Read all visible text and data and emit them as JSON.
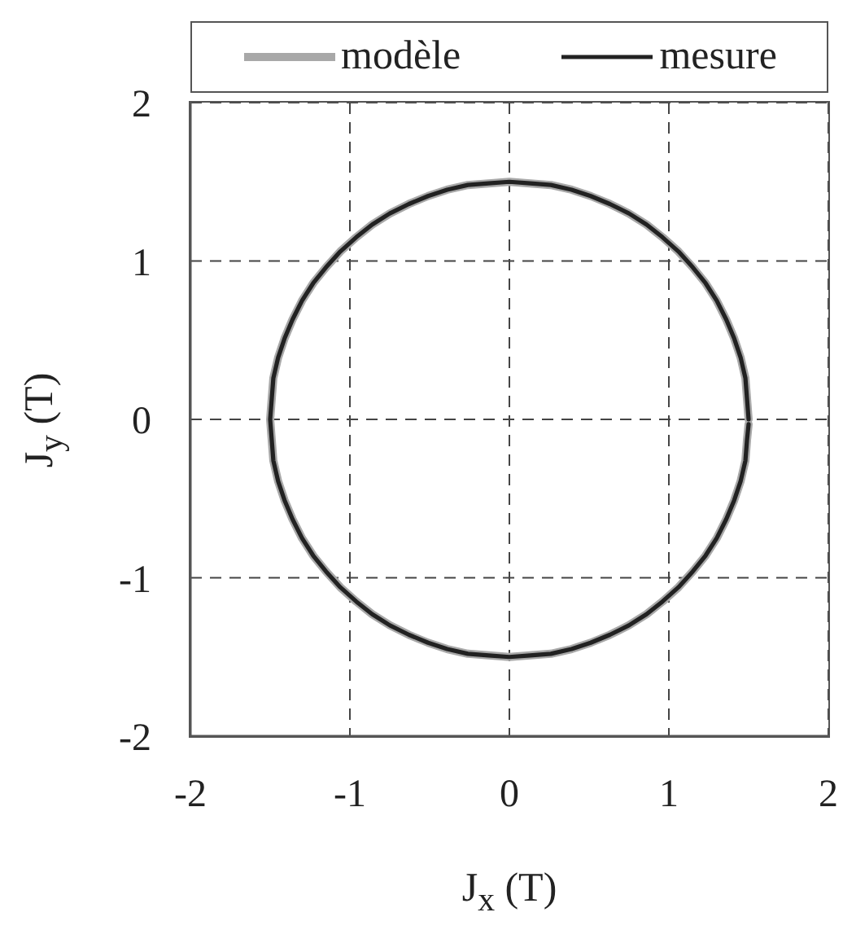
{
  "chart_data": {
    "type": "line",
    "xlabel": "J$_{x}$ (T)",
    "ylabel": "J$_{y}$ (T)",
    "xlim": [
      -2,
      2
    ],
    "ylim": [
      -2,
      2
    ],
    "xticks": [
      -2,
      -1,
      0,
      1,
      2
    ],
    "yticks": [
      -2,
      -1,
      0,
      1,
      2
    ],
    "grid": true,
    "legend": "top",
    "series": [
      {
        "name": "modèle",
        "color": "#a8a8a8",
        "x": [
          1.5,
          1.49,
          1.48,
          1.45,
          1.41,
          1.36,
          1.3,
          1.23,
          1.15,
          1.06,
          0.96,
          0.86,
          0.75,
          0.63,
          0.51,
          0.39,
          0.26,
          0.13,
          0,
          -0.13,
          -0.26,
          -0.39,
          -0.51,
          -0.63,
          -0.75,
          -0.86,
          -0.96,
          -1.06,
          -1.15,
          -1.23,
          -1.3,
          -1.36,
          -1.41,
          -1.45,
          -1.48,
          -1.49,
          -1.5,
          -1.49,
          -1.48,
          -1.45,
          -1.41,
          -1.36,
          -1.3,
          -1.23,
          -1.15,
          -1.06,
          -0.96,
          -0.86,
          -0.75,
          -0.63,
          -0.51,
          -0.39,
          -0.26,
          -0.13,
          0,
          0.13,
          0.26,
          0.39,
          0.51,
          0.63,
          0.75,
          0.86,
          0.96,
          1.06,
          1.15,
          1.23,
          1.3,
          1.36,
          1.41,
          1.45,
          1.48,
          1.49,
          1.5
        ],
        "values": [
          0,
          0.13,
          0.26,
          0.39,
          0.51,
          0.63,
          0.75,
          0.86,
          0.96,
          1.06,
          1.15,
          1.23,
          1.3,
          1.36,
          1.41,
          1.45,
          1.48,
          1.49,
          1.5,
          1.49,
          1.48,
          1.45,
          1.41,
          1.36,
          1.3,
          1.23,
          1.15,
          1.06,
          0.96,
          0.86,
          0.75,
          0.63,
          0.51,
          0.39,
          0.26,
          0.13,
          0,
          -0.13,
          -0.26,
          -0.39,
          -0.51,
          -0.63,
          -0.75,
          -0.86,
          -0.96,
          -1.06,
          -1.15,
          -1.23,
          -1.3,
          -1.36,
          -1.41,
          -1.45,
          -1.48,
          -1.49,
          -1.5,
          -1.49,
          -1.48,
          -1.45,
          -1.41,
          -1.36,
          -1.3,
          -1.23,
          -1.15,
          -1.06,
          -0.96,
          -0.86,
          -0.75,
          -0.63,
          -0.51,
          -0.39,
          -0.26,
          -0.13,
          -0.03
        ]
      },
      {
        "name": "mesure",
        "color": "#222222",
        "x": [
          1.5,
          1.49,
          1.48,
          1.45,
          1.41,
          1.36,
          1.3,
          1.23,
          1.15,
          1.06,
          0.96,
          0.86,
          0.75,
          0.63,
          0.51,
          0.39,
          0.26,
          0.13,
          0,
          -0.13,
          -0.26,
          -0.39,
          -0.51,
          -0.63,
          -0.75,
          -0.86,
          -0.96,
          -1.06,
          -1.15,
          -1.23,
          -1.3,
          -1.36,
          -1.41,
          -1.45,
          -1.48,
          -1.49,
          -1.5,
          -1.49,
          -1.48,
          -1.45,
          -1.41,
          -1.36,
          -1.3,
          -1.23,
          -1.15,
          -1.06,
          -0.96,
          -0.86,
          -0.75,
          -0.63,
          -0.51,
          -0.39,
          -0.26,
          -0.13,
          0,
          0.13,
          0.26,
          0.39,
          0.51,
          0.63,
          0.75,
          0.86,
          0.96,
          1.06,
          1.15,
          1.23,
          1.3,
          1.36,
          1.41,
          1.45,
          1.48,
          1.49,
          1.5
        ],
        "values": [
          0,
          0.13,
          0.26,
          0.39,
          0.51,
          0.63,
          0.75,
          0.86,
          0.96,
          1.06,
          1.15,
          1.23,
          1.3,
          1.36,
          1.41,
          1.45,
          1.48,
          1.49,
          1.5,
          1.49,
          1.48,
          1.45,
          1.41,
          1.36,
          1.3,
          1.23,
          1.15,
          1.06,
          0.96,
          0.86,
          0.75,
          0.63,
          0.51,
          0.39,
          0.26,
          0.13,
          0,
          -0.13,
          -0.26,
          -0.39,
          -0.51,
          -0.63,
          -0.75,
          -0.86,
          -0.96,
          -1.06,
          -1.15,
          -1.23,
          -1.3,
          -1.36,
          -1.41,
          -1.45,
          -1.48,
          -1.49,
          -1.5,
          -1.49,
          -1.48,
          -1.45,
          -1.41,
          -1.36,
          -1.3,
          -1.23,
          -1.15,
          -1.06,
          -0.96,
          -0.86,
          -0.75,
          -0.63,
          -0.51,
          -0.39,
          -0.26,
          -0.13,
          -0.03
        ]
      }
    ]
  }
}
